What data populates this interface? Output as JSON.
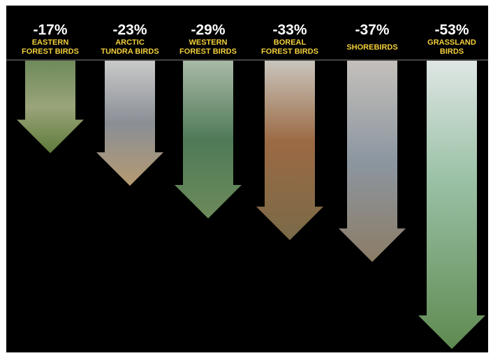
{
  "chart_data": {
    "type": "arrow",
    "categories": [
      [
        "EASTERN",
        "FOREST BIRDS"
      ],
      [
        "ARCTIC",
        "TUNDRA BIRDS"
      ],
      [
        "WESTERN",
        "FOREST BIRDS"
      ],
      [
        "BOREAL",
        "FOREST BIRDS"
      ],
      [
        "SHOREBIRDS"
      ],
      [
        "GRASSLAND",
        "BIRDS"
      ]
    ],
    "values": [
      -17,
      -23,
      -29,
      -33,
      -37,
      -53
    ],
    "value_labels": [
      "-17%",
      "-23%",
      "-29%",
      "-33%",
      "-37%",
      "-53%"
    ]
  }
}
